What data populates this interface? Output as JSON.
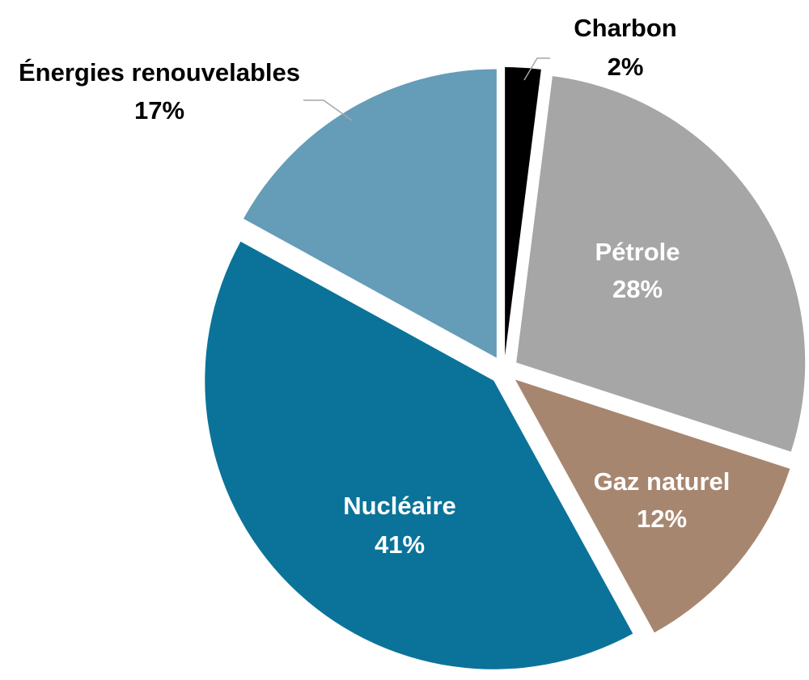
{
  "chart_data": {
    "type": "pie",
    "title": "",
    "slices": [
      {
        "name": "Charbon",
        "value": 2,
        "value_label": "2%",
        "color": "#000000",
        "label_position": "outside",
        "label_color": "#000000"
      },
      {
        "name": "Pétrole",
        "value": 28,
        "value_label": "28%",
        "color": "#a6a6a6",
        "label_position": "inside",
        "label_color": "#ffffff"
      },
      {
        "name": "Gaz naturel",
        "value": 12,
        "value_label": "12%",
        "color": "#a7866f",
        "label_position": "inside",
        "label_color": "#ffffff"
      },
      {
        "name": "Nucléaire",
        "value": 41,
        "value_label": "41%",
        "color": "#0b7399",
        "label_position": "inside",
        "label_color": "#ffffff"
      },
      {
        "name": "Énergies renouvelables",
        "value": 17,
        "value_label": "17%",
        "color": "#659cb8",
        "label_position": "outside",
        "label_color": "#000000"
      }
    ],
    "start_angle": "12 o'clock",
    "direction": "clockwise",
    "exploded": true,
    "legend": "none"
  }
}
